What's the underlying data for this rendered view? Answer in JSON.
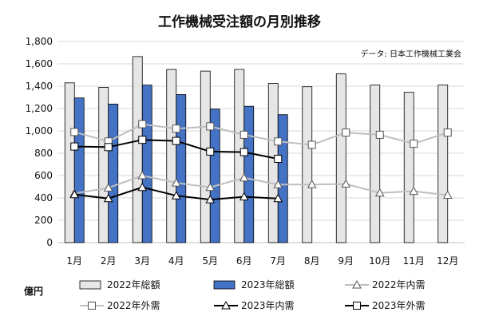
{
  "chart_data": {
    "type": "bar",
    "title": "工作機械受注額の月別推移",
    "source": "データ: 日本工作機械工業会",
    "unit": "億円",
    "categories": [
      "1月",
      "2月",
      "3月",
      "4月",
      "5月",
      "6月",
      "7月",
      "8月",
      "9月",
      "10月",
      "11月",
      "12月"
    ],
    "ylim": [
      0,
      1800
    ],
    "yticks": [
      "0",
      "200",
      "400",
      "600",
      "800",
      "1,000",
      "1,200",
      "1,400",
      "1,600",
      "1,800"
    ],
    "ytick_values": [
      0,
      200,
      400,
      600,
      800,
      1000,
      1200,
      1400,
      1600,
      1800
    ],
    "grid": true,
    "legend_position": "bottom",
    "series": [
      {
        "name": "2022年総額",
        "kind": "bar",
        "color": "#e6e6e6",
        "values": [
          1430,
          1390,
          1665,
          1550,
          1535,
          1550,
          1425,
          1395,
          1510,
          1410,
          1345,
          1410
        ]
      },
      {
        "name": "2023年総額",
        "kind": "bar",
        "color": "#4472c4",
        "values": [
          1295,
          1240,
          1410,
          1325,
          1195,
          1220,
          1145,
          null,
          null,
          null,
          null,
          null
        ]
      },
      {
        "name": "2022年内需",
        "kind": "line",
        "marker": "triangle",
        "color": "#bfbfbf",
        "values": [
          440,
          490,
          600,
          535,
          495,
          580,
          520,
          520,
          525,
          445,
          460,
          425
        ]
      },
      {
        "name": "2022年外需",
        "kind": "line",
        "marker": "square",
        "color": "#bfbfbf",
        "values": [
          990,
          905,
          1060,
          1020,
          1040,
          965,
          905,
          875,
          985,
          965,
          885,
          985
        ]
      },
      {
        "name": "2023年内需",
        "kind": "line",
        "marker": "triangle",
        "color": "#000000",
        "values": [
          430,
          395,
          495,
          420,
          385,
          410,
          395,
          null,
          null,
          null,
          null,
          null
        ]
      },
      {
        "name": "2023年外需",
        "kind": "line",
        "marker": "square",
        "color": "#000000",
        "values": [
          860,
          855,
          920,
          910,
          815,
          810,
          750,
          null,
          null,
          null,
          null,
          null
        ]
      }
    ]
  }
}
